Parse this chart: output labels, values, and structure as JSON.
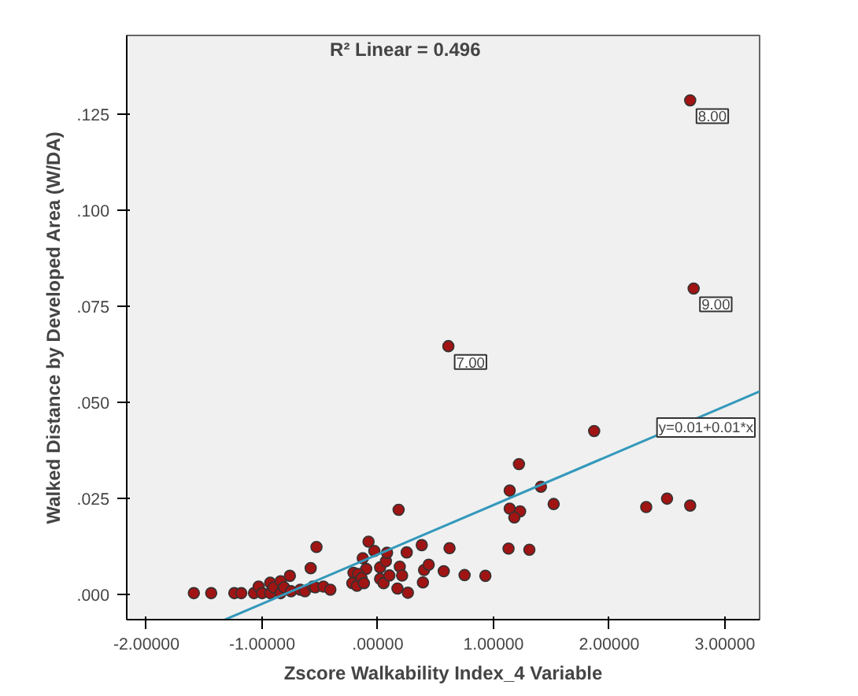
{
  "chart_data": {
    "type": "scatter",
    "title": "R² Linear = 0.496",
    "xlabel": "Zscore Walkability Index_4 Variable",
    "ylabel": "Walked Distance by Developed Area (W/DA)",
    "xlim": [
      -2.17,
      3.3
    ],
    "ylim": [
      -0.0066,
      0.1455
    ],
    "xticks": [
      {
        "value": -2,
        "label": "-2.00000"
      },
      {
        "value": -1,
        "label": "-1.00000"
      },
      {
        "value": 0,
        "label": ".00000"
      },
      {
        "value": 1,
        "label": "1.00000"
      },
      {
        "value": 2,
        "label": "2.00000"
      },
      {
        "value": 3,
        "label": "3.00000"
      }
    ],
    "yticks": [
      {
        "value": 0,
        "label": ".000"
      },
      {
        "value": 0.025,
        "label": ".025"
      },
      {
        "value": 0.05,
        "label": ".050"
      },
      {
        "value": 0.075,
        "label": ".075"
      },
      {
        "value": 0.1,
        "label": ".100"
      },
      {
        "value": 0.125,
        "label": ".125"
      }
    ],
    "grid": false,
    "series": [
      {
        "color": "#a01414",
        "marker": "circle",
        "x": [
          -1.59,
          -1.44,
          -1.24,
          -1.18,
          -1.07,
          -1.03,
          -1.0,
          -0.93,
          -0.93,
          -0.9,
          -0.84,
          -0.84,
          -0.81,
          -0.76,
          -0.75,
          -0.67,
          -0.63,
          -0.58,
          -0.56,
          -0.54,
          -0.47,
          -0.41,
          -0.53,
          0.18,
          -0.08,
          -0.03,
          -0.13,
          -0.1,
          -0.21,
          -0.22,
          -0.18,
          -0.17,
          -0.14,
          -0.12,
          0.02,
          0.07,
          0.08,
          0.02,
          0.05,
          0.1,
          0.17,
          0.19,
          0.21,
          0.26,
          0.25,
          0.38,
          0.4,
          0.44,
          0.39,
          0.57,
          0.62,
          1.22,
          1.14,
          1.41,
          1.14,
          1.23,
          1.18,
          1.52,
          0.75,
          0.93,
          1.13,
          1.31,
          2.32,
          2.5,
          2.7,
          2.7,
          2.73,
          0.61,
          1.87
        ],
        "values": [
          0.0003,
          0.0003,
          0.0003,
          0.0003,
          0.0003,
          0.002,
          0.0003,
          0.003,
          0.0003,
          0.0018,
          0.0034,
          0.0003,
          0.0018,
          0.0048,
          0.0008,
          0.0012,
          0.0008,
          0.0068,
          0.002,
          0.0018,
          0.002,
          0.0012,
          0.0123,
          0.022,
          0.0137,
          0.0113,
          0.0094,
          0.0066,
          0.0056,
          0.0029,
          0.0022,
          0.0053,
          0.0042,
          0.0029,
          0.007,
          0.0086,
          0.0108,
          0.004,
          0.0029,
          0.0049,
          0.0015,
          0.0072,
          0.0049,
          0.0004,
          0.0109,
          0.0128,
          0.0063,
          0.0077,
          0.0031,
          0.006,
          0.012,
          0.0339,
          0.027,
          0.028,
          0.0223,
          0.0216,
          0.02,
          0.0235,
          0.005,
          0.0048,
          0.0119,
          0.0116,
          0.0227,
          0.0249,
          0.0231,
          0.1286,
          0.0796,
          0.0646,
          0.0425
        ]
      },
      {
        "type": "line",
        "color": "#3399bb",
        "marker": "none",
        "x": [
          -1.32,
          3.3
        ],
        "values": [
          -0.0066,
          0.0528
        ]
      }
    ],
    "annotations": [
      {
        "text": "8.00",
        "x": 2.7,
        "y": 0.1286
      },
      {
        "text": "9.00",
        "x": 2.73,
        "y": 0.0796
      },
      {
        "text": "7.00",
        "x": 0.61,
        "y": 0.0646
      },
      "y=0.01+0.01*x"
    ]
  }
}
